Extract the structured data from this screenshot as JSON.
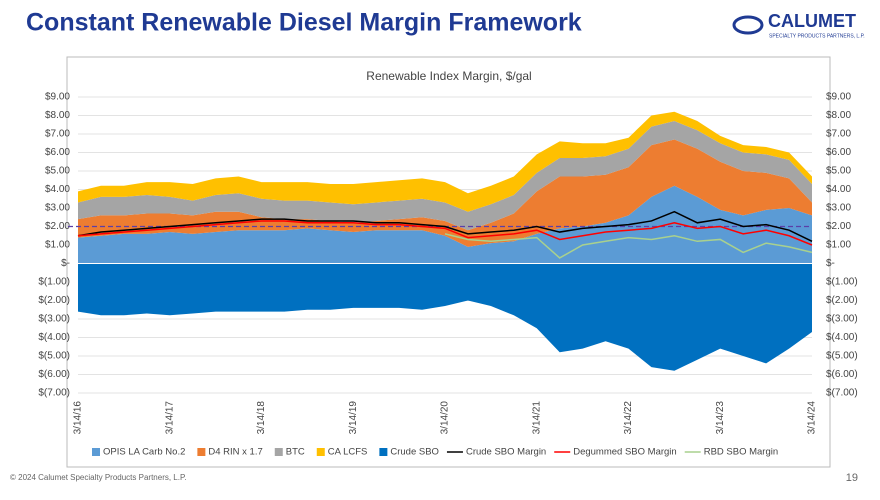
{
  "header": {
    "title": "Constant Renewable Diesel Margin Framework",
    "logo": "CALUMET",
    "logo_sub": "SPECIALTY PRODUCTS PARTNERS, L.P."
  },
  "footer": {
    "copyright": "© 2024 Calumet Specialty Products Partners, L.P.",
    "page": "19"
  },
  "chart_data": {
    "type": "stacked_area_line",
    "title": "Renewable Index Margin, $/gal",
    "categories": [
      "3/14/16",
      null,
      null,
      null,
      "3/14/17",
      null,
      null,
      null,
      "3/14/18",
      null,
      null,
      null,
      "3/14/19",
      null,
      null,
      null,
      "3/14/20",
      null,
      null,
      null,
      "3/14/21",
      null,
      null,
      null,
      "3/14/22",
      null,
      null,
      null,
      "3/14/23",
      null,
      null,
      null,
      "3/14/24"
    ],
    "ylim": [
      -7,
      9
    ],
    "yticks": [
      {
        "value": 9,
        "label": "$9.00"
      },
      {
        "value": 8,
        "label": "$8.00"
      },
      {
        "value": 7,
        "label": "$7.00"
      },
      {
        "value": 6,
        "label": "$6.00"
      },
      {
        "value": 5,
        "label": "$5.00"
      },
      {
        "value": 4,
        "label": "$4.00"
      },
      {
        "value": 3,
        "label": "$3.00"
      },
      {
        "value": 2,
        "label": "$2.00"
      },
      {
        "value": 1,
        "label": "$1.00"
      },
      {
        "value": 0,
        "label": "$-"
      },
      {
        "value": -1,
        "label": "$(1.00)"
      },
      {
        "value": -2,
        "label": "$(2.00)"
      },
      {
        "value": -3,
        "label": "$(3.00)"
      },
      {
        "value": -4,
        "label": "$(4.00)"
      },
      {
        "value": -5,
        "label": "$(5.00)"
      },
      {
        "value": -6,
        "label": "$(6.00)"
      },
      {
        "value": -7,
        "label": "$(7.00)"
      }
    ],
    "reference_line": {
      "value": 2,
      "color": "#5b3fa8"
    },
    "grid": true,
    "series": [
      {
        "name": "OPIS LA Carb No.2",
        "kind": "area",
        "color": "#5b9bd5",
        "values": [
          1.4,
          1.5,
          1.6,
          1.6,
          1.7,
          1.6,
          1.7,
          1.8,
          1.8,
          1.8,
          1.9,
          1.8,
          1.7,
          1.8,
          1.8,
          1.8,
          1.5,
          0.9,
          1.1,
          1.2,
          1.6,
          1.9,
          2.0,
          2.2,
          2.6,
          3.6,
          4.2,
          3.6,
          2.9,
          2.6,
          2.9,
          3.0,
          2.6
        ]
      },
      {
        "name": "D4 RIN x 1.7",
        "kind": "area",
        "color": "#ed7d31",
        "values": [
          1.0,
          1.1,
          1.0,
          1.1,
          1.0,
          1.0,
          1.1,
          1.0,
          0.7,
          0.6,
          0.5,
          0.5,
          0.5,
          0.5,
          0.6,
          0.7,
          0.8,
          0.9,
          1.1,
          1.5,
          2.3,
          2.8,
          2.7,
          2.6,
          2.6,
          2.8,
          2.5,
          2.6,
          2.6,
          2.4,
          2.0,
          1.6,
          0.7
        ]
      },
      {
        "name": "BTC",
        "kind": "area",
        "color": "#a5a5a5",
        "values": [
          0.9,
          1.0,
          1.0,
          1.0,
          0.9,
          0.8,
          0.9,
          1.0,
          1.0,
          1.0,
          1.0,
          1.0,
          1.0,
          1.0,
          1.0,
          1.0,
          1.0,
          1.0,
          1.0,
          1.0,
          1.0,
          1.0,
          1.0,
          1.0,
          1.0,
          1.0,
          1.0,
          1.0,
          1.0,
          1.0,
          1.0,
          1.0,
          1.0
        ]
      },
      {
        "name": "CA LCFS",
        "kind": "area",
        "color": "#ffc000",
        "values": [
          0.6,
          0.6,
          0.6,
          0.7,
          0.8,
          0.9,
          0.9,
          0.9,
          0.9,
          1.0,
          1.0,
          1.0,
          1.1,
          1.1,
          1.1,
          1.1,
          1.1,
          1.0,
          1.0,
          1.0,
          1.0,
          0.9,
          0.8,
          0.7,
          0.6,
          0.6,
          0.5,
          0.5,
          0.4,
          0.4,
          0.4,
          0.4,
          0.4
        ]
      },
      {
        "name": "Crude SBO",
        "kind": "area",
        "color": "#0070c0",
        "values": [
          -2.6,
          -2.8,
          -2.8,
          -2.7,
          -2.8,
          -2.7,
          -2.6,
          -2.6,
          -2.6,
          -2.6,
          -2.5,
          -2.5,
          -2.4,
          -2.4,
          -2.4,
          -2.5,
          -2.3,
          -2.0,
          -2.3,
          -2.8,
          -3.5,
          -4.8,
          -4.6,
          -4.2,
          -4.6,
          -5.6,
          -5.8,
          -5.2,
          -4.6,
          -5.0,
          -5.4,
          -4.6,
          -3.7
        ]
      },
      {
        "name": "Crude SBO Margin",
        "kind": "line",
        "color": "#000000",
        "values": [
          1.5,
          1.7,
          1.8,
          1.9,
          2.0,
          2.1,
          2.2,
          2.3,
          2.4,
          2.4,
          2.3,
          2.3,
          2.3,
          2.2,
          2.2,
          2.1,
          2.0,
          1.6,
          1.7,
          1.8,
          2.0,
          1.7,
          1.9,
          2.0,
          2.1,
          2.3,
          2.8,
          2.2,
          2.4,
          2.0,
          2.1,
          1.8,
          1.2
        ]
      },
      {
        "name": "Degummed SBO Margin",
        "kind": "line",
        "color": "#ff0000",
        "values": [
          1.5,
          1.6,
          1.7,
          1.8,
          1.9,
          2.0,
          2.1,
          2.2,
          2.3,
          2.3,
          2.2,
          2.2,
          2.2,
          2.1,
          2.1,
          2.0,
          1.9,
          1.4,
          1.5,
          1.6,
          1.8,
          1.3,
          1.5,
          1.7,
          1.8,
          1.9,
          2.2,
          1.9,
          2.0,
          1.6,
          1.8,
          1.5,
          1.0
        ]
      },
      {
        "name": "RBD SBO Margin",
        "kind": "line",
        "color": "#a9d18e",
        "values": [
          null,
          null,
          null,
          null,
          null,
          null,
          null,
          null,
          null,
          null,
          null,
          null,
          null,
          null,
          null,
          null,
          1.6,
          1.3,
          1.2,
          1.3,
          1.4,
          0.3,
          1.0,
          1.2,
          1.4,
          1.3,
          1.5,
          1.2,
          1.3,
          0.6,
          1.1,
          0.9,
          0.6
        ]
      }
    ]
  }
}
